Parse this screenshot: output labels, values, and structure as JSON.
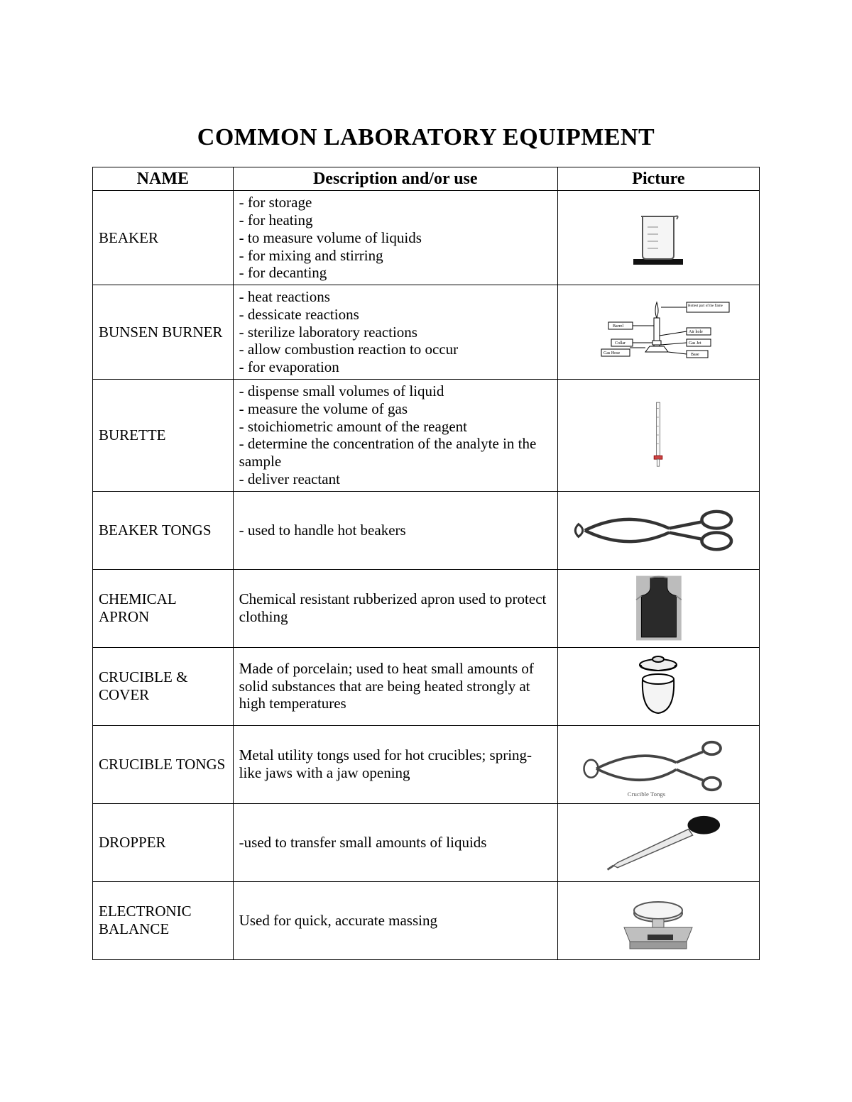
{
  "title": "COMMON LABORATORY EQUIPMENT",
  "headers": {
    "name": "NAME",
    "desc": "Description and/or use",
    "pic": "Picture"
  },
  "rows": [
    {
      "name": "BEAKER",
      "desc_lines": [
        "- for storage",
        "- for heating",
        "- to measure volume of liquids",
        "- for mixing and stirring",
        "- for decanting"
      ],
      "icon": "beaker"
    },
    {
      "name": "BUNSEN BURNER",
      "desc_lines": [
        "- heat reactions",
        "- dessicate reactions",
        "- sterilize laboratory reactions",
        "- allow combustion reaction to occur",
        "- for evaporation"
      ],
      "icon": "bunsen"
    },
    {
      "name": "BURETTE",
      "desc_lines": [
        "- dispense small volumes of liquid",
        "- measure the volume of gas",
        "- stoichiometric amount of the reagent",
        "- determine the concentration of the analyte in the sample",
        "- deliver reactant"
      ],
      "icon": "burette"
    },
    {
      "name": "BEAKER TONGS",
      "desc_lines": [
        "- used to handle hot beakers"
      ],
      "icon": "btongs"
    },
    {
      "name": "CHEMICAL APRON",
      "desc_lines": [
        "Chemical resistant rubberized apron used to protect clothing"
      ],
      "icon": "apron"
    },
    {
      "name": "CRUCIBLE & COVER",
      "desc_lines": [
        "Made of porcelain; used to heat small amounts of solid substances that are being heated strongly at high temperatures"
      ],
      "icon": "crucible"
    },
    {
      "name": "CRUCIBLE TONGS",
      "desc_lines": [
        "Metal utility tongs used for hot crucibles; spring-like jaws with a jaw opening"
      ],
      "icon": "ctongs"
    },
    {
      "name": "DROPPER",
      "desc_lines": [
        "-used to transfer small amounts of liquids"
      ],
      "icon": "dropper"
    },
    {
      "name": "ELECTRONIC BALANCE",
      "desc_lines": [
        "Used for quick, accurate massing"
      ],
      "icon": "balance"
    }
  ],
  "bunsen_labels": {
    "hottest": "Hottest part of the flame",
    "barrel": "Barrel",
    "airhole": "Air hole",
    "collar": "Collar",
    "gasjet": "Gas Jet",
    "gashose": "Gas Hose",
    "base": "Base"
  },
  "ctongs_caption": "Crucible Tongs"
}
